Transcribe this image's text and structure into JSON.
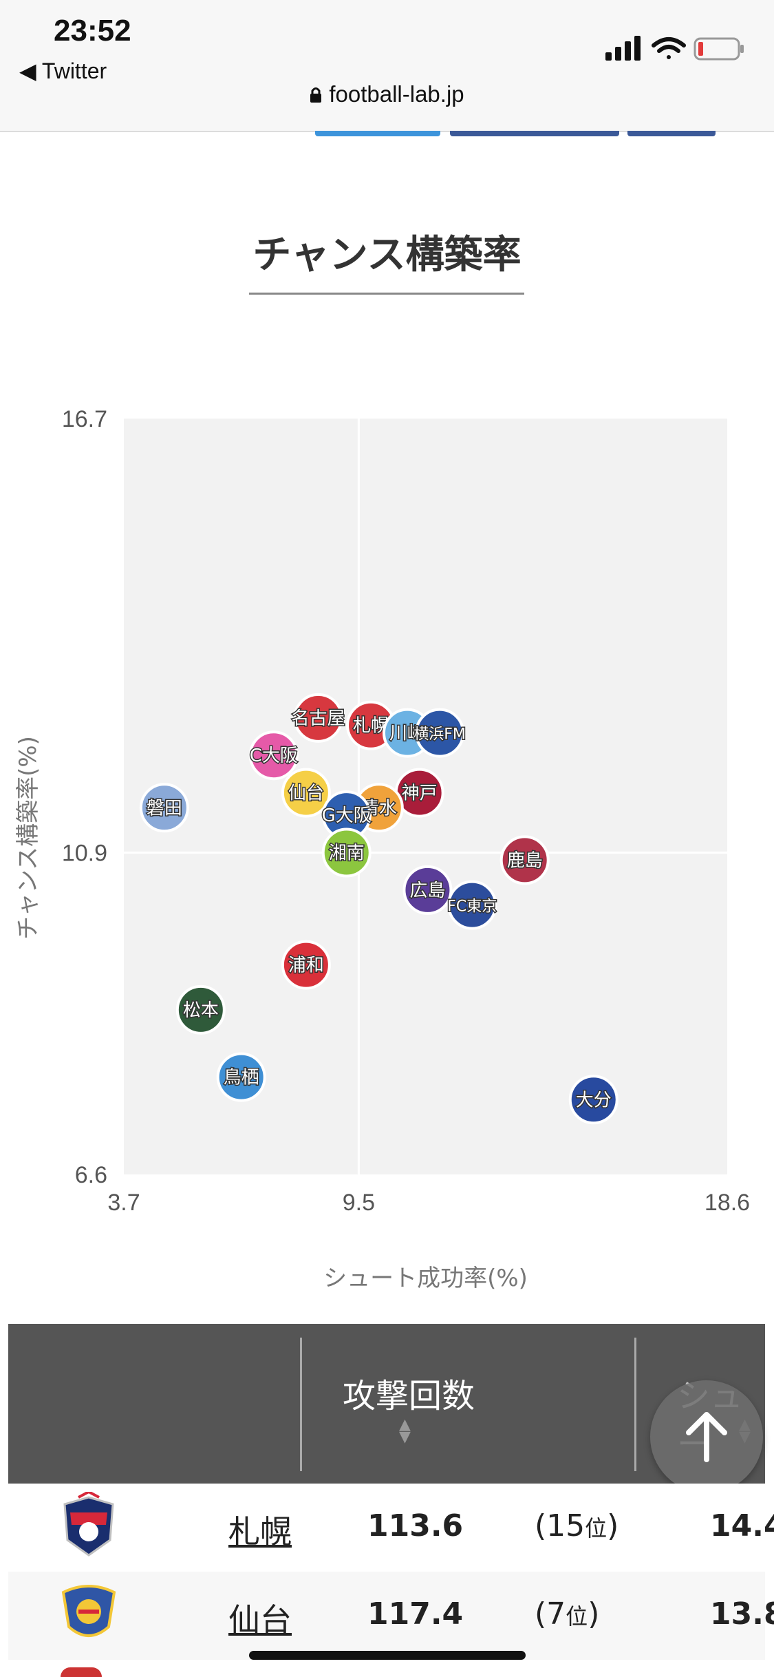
{
  "status": {
    "time": "23:52",
    "back_label": "◀ Twitter",
    "url": "football-lab.jp"
  },
  "section_title": "チャンス構築率",
  "chart_data": {
    "type": "scatter",
    "xlabel": "シュート成功率(%)",
    "ylabel": "チャンス構築率(%)",
    "xlim": [
      3.7,
      18.6
    ],
    "ylim": [
      6.6,
      16.7
    ],
    "x_mid": 9.5,
    "y_mid": 10.9,
    "xticks": [
      "3.7",
      "9.5",
      "18.6"
    ],
    "yticks": [
      "16.7",
      "10.9",
      "6.6"
    ],
    "grid": false,
    "points": [
      {
        "label": "磐田",
        "x": 4.7,
        "y": 11.5,
        "color": "#8aa9d8"
      },
      {
        "label": "名古屋",
        "x": 8.5,
        "y": 12.7,
        "color": "#d7383f"
      },
      {
        "label": "札幌",
        "x": 9.8,
        "y": 12.6,
        "color": "#d7383f"
      },
      {
        "label": "川崎",
        "x": 10.7,
        "y": 12.5,
        "color": "#6cb2e3"
      },
      {
        "label": "横浜FM",
        "x": 11.5,
        "y": 12.5,
        "color": "#2c56a6"
      },
      {
        "label": "C大阪",
        "x": 7.4,
        "y": 12.2,
        "color": "#e55aa8"
      },
      {
        "label": "仙台",
        "x": 8.2,
        "y": 11.7,
        "color": "#f5cf47"
      },
      {
        "label": "神戸",
        "x": 11.0,
        "y": 11.7,
        "color": "#a91d3a"
      },
      {
        "label": "清水",
        "x": 10.0,
        "y": 11.5,
        "color": "#f0a23b"
      },
      {
        "label": "G大阪",
        "x": 9.2,
        "y": 11.4,
        "color": "#2e5fb0"
      },
      {
        "label": "湘南",
        "x": 9.2,
        "y": 10.9,
        "color": "#8cc63f"
      },
      {
        "label": "鹿島",
        "x": 13.6,
        "y": 10.8,
        "color": "#b0334a"
      },
      {
        "label": "広島",
        "x": 11.2,
        "y": 10.4,
        "color": "#5a3d98"
      },
      {
        "label": "FC東京",
        "x": 12.3,
        "y": 10.2,
        "color": "#2c4d9c"
      },
      {
        "label": "浦和",
        "x": 8.2,
        "y": 9.4,
        "color": "#d9303a"
      },
      {
        "label": "松本",
        "x": 5.6,
        "y": 8.8,
        "color": "#2f5a3a"
      },
      {
        "label": "鳥栖",
        "x": 6.6,
        "y": 7.9,
        "color": "#3f8fd4"
      },
      {
        "label": "大分",
        "x": 15.3,
        "y": 7.6,
        "color": "#284a9f"
      }
    ]
  },
  "table": {
    "headers": [
      "攻撃回数",
      "シュー"
    ],
    "rows": [
      {
        "team": "札幌",
        "value": "113.6",
        "rank_num": "(15",
        "rank_unit": "位",
        "rank_close": ")",
        "next": "14.4"
      },
      {
        "team": "仙台",
        "value": "117.4",
        "rank_num": "(7",
        "rank_unit": "位",
        "rank_close": ")",
        "next": "13.8"
      }
    ]
  },
  "colors": {
    "header_bg": "#555555",
    "plot_bg": "#f2f2f2"
  }
}
